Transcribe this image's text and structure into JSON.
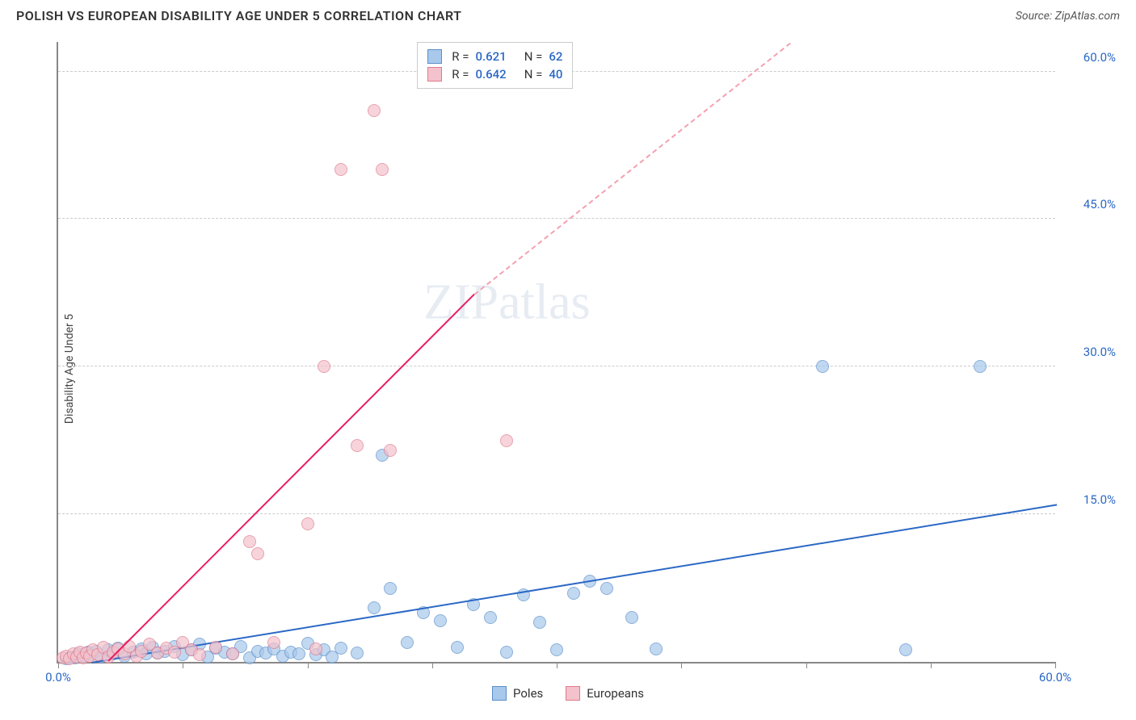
{
  "header": {
    "title": "POLISH VS EUROPEAN DISABILITY AGE UNDER 5 CORRELATION CHART",
    "source": "Source: ZipAtlas.com"
  },
  "chart": {
    "type": "scatter",
    "y_axis_label": "Disability Age Under 5",
    "xlim": [
      0,
      60
    ],
    "ylim": [
      0,
      63
    ],
    "xtick_labels": {
      "0": "0.0%",
      "60": "60.0%"
    },
    "xtick_positions": [
      0,
      7.5,
      15,
      22.5,
      30,
      37.5,
      45,
      52.5,
      60
    ],
    "ytick_labels": {
      "15": "15.0%",
      "30": "30.0%",
      "45": "45.0%",
      "60": "60.0%"
    },
    "xtick_color": "#2b68c5",
    "ytick_color": "#2b68c5",
    "grid_color": "#cccccc",
    "background_color": "#ffffff",
    "series": [
      {
        "name": "Poles",
        "color_fill": "#a8c8ec",
        "color_border": "#5a8fc9",
        "trend": {
          "x1": 2,
          "y1": 0.2,
          "x2": 60,
          "y2": 16.2,
          "color": "#2b68c5",
          "width": 2
        },
        "points": [
          [
            0.5,
            0.3
          ],
          [
            0.8,
            0.5
          ],
          [
            1.0,
            0.4
          ],
          [
            1.2,
            0.8
          ],
          [
            1.5,
            0.6
          ],
          [
            1.8,
            1.0
          ],
          [
            2.0,
            0.7
          ],
          [
            2.3,
            1.1
          ],
          [
            2.6,
            0.5
          ],
          [
            3.0,
            1.2
          ],
          [
            3.3,
            0.8
          ],
          [
            3.6,
            1.4
          ],
          [
            4.0,
            0.6
          ],
          [
            4.5,
            1.0
          ],
          [
            5.0,
            1.3
          ],
          [
            5.3,
            0.8
          ],
          [
            5.7,
            1.5
          ],
          [
            6.0,
            0.9
          ],
          [
            6.4,
            1.1
          ],
          [
            7.0,
            1.6
          ],
          [
            7.5,
            0.7
          ],
          [
            8.0,
            1.2
          ],
          [
            8.5,
            1.8
          ],
          [
            9.0,
            0.5
          ],
          [
            9.5,
            1.4
          ],
          [
            10.0,
            1.0
          ],
          [
            10.5,
            0.8
          ],
          [
            11.0,
            1.6
          ],
          [
            11.5,
            0.4
          ],
          [
            12.0,
            1.1
          ],
          [
            12.5,
            0.9
          ],
          [
            13.0,
            1.3
          ],
          [
            13.5,
            0.6
          ],
          [
            14.0,
            1.0
          ],
          [
            14.5,
            0.8
          ],
          [
            15.0,
            1.9
          ],
          [
            15.5,
            0.7
          ],
          [
            16.0,
            1.2
          ],
          [
            16.5,
            0.5
          ],
          [
            17.0,
            1.4
          ],
          [
            18.0,
            0.9
          ],
          [
            19.0,
            5.5
          ],
          [
            19.5,
            21.0
          ],
          [
            20.0,
            7.5
          ],
          [
            21.0,
            2.0
          ],
          [
            22.0,
            5.0
          ],
          [
            23.0,
            4.2
          ],
          [
            24.0,
            1.5
          ],
          [
            25.0,
            5.8
          ],
          [
            26.0,
            4.5
          ],
          [
            27.0,
            1.0
          ],
          [
            28.0,
            6.8
          ],
          [
            29.0,
            4.0
          ],
          [
            30.0,
            1.2
          ],
          [
            31.0,
            7.0
          ],
          [
            32.0,
            8.2
          ],
          [
            33.0,
            7.5
          ],
          [
            34.5,
            4.5
          ],
          [
            36.0,
            1.3
          ],
          [
            46.0,
            30.0
          ],
          [
            51.0,
            1.2
          ],
          [
            55.5,
            30.0
          ]
        ]
      },
      {
        "name": "Europeans",
        "color_fill": "#f4c2cc",
        "color_border": "#e07a8c",
        "trend": {
          "x1": 3,
          "y1": 0.3,
          "x2": 25,
          "y2": 37.5,
          "color": "#e91e63",
          "width": 2
        },
        "trend_dashed_ext": {
          "x1": 25,
          "y1": 37.5,
          "x2": 44,
          "y2": 63,
          "color": "#f4a0b0"
        },
        "points": [
          [
            0.3,
            0.4
          ],
          [
            0.5,
            0.6
          ],
          [
            0.7,
            0.3
          ],
          [
            0.9,
            0.8
          ],
          [
            1.1,
            0.5
          ],
          [
            1.3,
            1.0
          ],
          [
            1.5,
            0.4
          ],
          [
            1.7,
            0.9
          ],
          [
            1.9,
            0.6
          ],
          [
            2.1,
            1.2
          ],
          [
            2.4,
            0.7
          ],
          [
            2.7,
            1.5
          ],
          [
            3.0,
            0.5
          ],
          [
            3.3,
            1.0
          ],
          [
            3.6,
            1.3
          ],
          [
            4.0,
            0.8
          ],
          [
            4.3,
            1.6
          ],
          [
            4.7,
            0.6
          ],
          [
            5.0,
            1.1
          ],
          [
            5.5,
            1.8
          ],
          [
            6.0,
            0.9
          ],
          [
            6.5,
            1.4
          ],
          [
            7.0,
            1.0
          ],
          [
            7.5,
            2.0
          ],
          [
            8.0,
            1.2
          ],
          [
            8.5,
            0.7
          ],
          [
            9.5,
            1.5
          ],
          [
            10.5,
            0.8
          ],
          [
            11.5,
            12.2
          ],
          [
            12.0,
            11.0
          ],
          [
            13.0,
            2.0
          ],
          [
            15.0,
            14.0
          ],
          [
            16.0,
            30.0
          ],
          [
            17.0,
            50.0
          ],
          [
            18.0,
            22.0
          ],
          [
            19.0,
            56.0
          ],
          [
            19.5,
            50.0
          ],
          [
            20.0,
            21.5
          ],
          [
            27.0,
            22.5
          ],
          [
            15.5,
            1.3
          ]
        ]
      }
    ],
    "stats_box": {
      "rows": [
        {
          "swatch_fill": "#a8c8ec",
          "swatch_border": "#5a8fc9",
          "r": "0.621",
          "n": "62"
        },
        {
          "swatch_fill": "#f4c2cc",
          "swatch_border": "#e07a8c",
          "r": "0.642",
          "n": "40"
        }
      ]
    },
    "bottom_legend": [
      {
        "label": "Poles",
        "swatch_fill": "#a8c8ec",
        "swatch_border": "#5a8fc9"
      },
      {
        "label": "Europeans",
        "swatch_fill": "#f4c2cc",
        "swatch_border": "#e07a8c"
      }
    ],
    "watermark": "ZIPatlas"
  }
}
